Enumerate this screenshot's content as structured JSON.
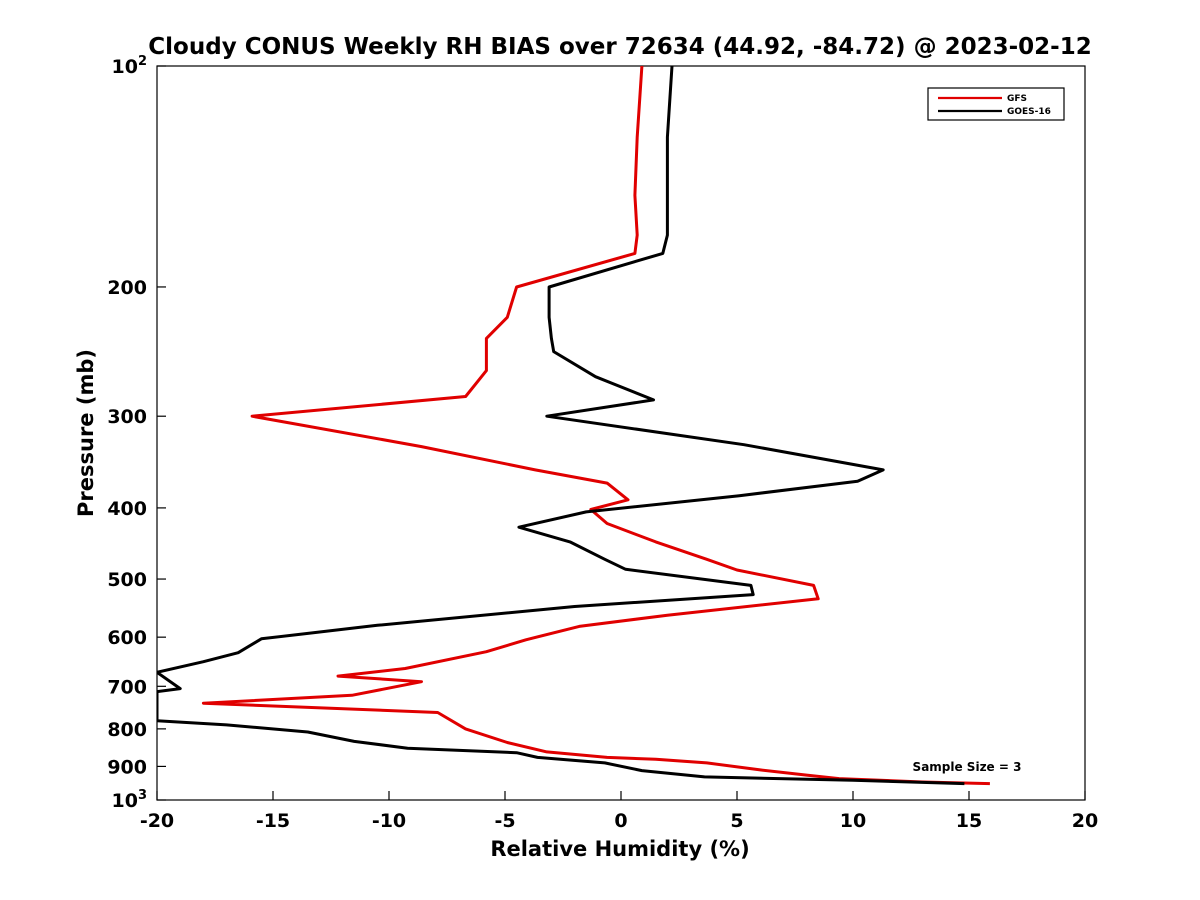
{
  "chart_data": {
    "type": "line",
    "title": "Cloudy CONUS Weekly RH BIAS over 72634 (44.92, -84.72) @ 2023-02-12",
    "xlabel": "Relative Humidity (%)",
    "ylabel": "Pressure (mb)",
    "xlim": [
      -20,
      20
    ],
    "ylim": [
      1000,
      100
    ],
    "y_scale": "log",
    "x_ticks": [
      "-20",
      "-15",
      "-10",
      "-5",
      "0",
      "5",
      "10",
      "15",
      "20"
    ],
    "y_ticks": [
      {
        "value": 100,
        "base": "10",
        "exp": "2"
      },
      {
        "value": 200,
        "base": "200",
        "exp": ""
      },
      {
        "value": 300,
        "base": "300",
        "exp": ""
      },
      {
        "value": 400,
        "base": "400",
        "exp": ""
      },
      {
        "value": 500,
        "base": "500",
        "exp": ""
      },
      {
        "value": 600,
        "base": "600",
        "exp": ""
      },
      {
        "value": 700,
        "base": "700",
        "exp": ""
      },
      {
        "value": 800,
        "base": "800",
        "exp": ""
      },
      {
        "value": 900,
        "base": "900",
        "exp": ""
      },
      {
        "value": 1000,
        "base": "10",
        "exp": "3"
      }
    ],
    "grid": false,
    "legend_position": "top-right",
    "annotation": "Sample Size = 3",
    "series": [
      {
        "name": "GFS",
        "color": "#e00000",
        "points": [
          [
            0.9,
            100
          ],
          [
            0.7,
            125
          ],
          [
            0.6,
            150
          ],
          [
            0.7,
            170
          ],
          [
            0.6,
            180
          ],
          [
            -4.5,
            200
          ],
          [
            -4.9,
            220
          ],
          [
            -5.8,
            235
          ],
          [
            -5.8,
            260
          ],
          [
            -6.7,
            282
          ],
          [
            -15.9,
            300
          ],
          [
            -8.6,
            330
          ],
          [
            -3.7,
            355
          ],
          [
            -0.6,
            370
          ],
          [
            0.3,
            390
          ],
          [
            -1.3,
            402
          ],
          [
            -0.6,
            420
          ],
          [
            1.5,
            445
          ],
          [
            3.7,
            470
          ],
          [
            5.0,
            486
          ],
          [
            8.3,
            510
          ],
          [
            8.5,
            532
          ],
          [
            2.0,
            560
          ],
          [
            -1.8,
            580
          ],
          [
            -4.1,
            605
          ],
          [
            -5.8,
            628
          ],
          [
            -9.3,
            662
          ],
          [
            -12.2,
            678
          ],
          [
            -8.6,
            690
          ],
          [
            -11.6,
            720
          ],
          [
            -18.0,
            738
          ],
          [
            -7.9,
            760
          ],
          [
            -6.7,
            800
          ],
          [
            -4.9,
            835
          ],
          [
            -3.2,
            860
          ],
          [
            -0.6,
            875
          ],
          [
            1.5,
            880
          ],
          [
            3.7,
            890
          ],
          [
            6.0,
            910
          ],
          [
            8.0,
            925
          ],
          [
            9.4,
            935
          ],
          [
            13.0,
            945
          ],
          [
            15.9,
            950
          ]
        ]
      },
      {
        "name": "GOES-16",
        "color": "#000000",
        "points": [
          [
            2.2,
            100
          ],
          [
            2.0,
            125
          ],
          [
            2.0,
            150
          ],
          [
            2.0,
            170
          ],
          [
            1.8,
            180
          ],
          [
            -3.1,
            200
          ],
          [
            -3.1,
            220
          ],
          [
            -3.0,
            235
          ],
          [
            -2.9,
            245
          ],
          [
            -1.1,
            265
          ],
          [
            1.4,
            285
          ],
          [
            -3.2,
            300
          ],
          [
            5.3,
            328
          ],
          [
            11.3,
            355
          ],
          [
            10.2,
            368
          ],
          [
            5.1,
            385
          ],
          [
            -1.5,
            405
          ],
          [
            -4.4,
            425
          ],
          [
            -2.2,
            445
          ],
          [
            -0.7,
            470
          ],
          [
            0.2,
            485
          ],
          [
            5.6,
            510
          ],
          [
            5.7,
            525
          ],
          [
            -2.0,
            545
          ],
          [
            -10.5,
            578
          ],
          [
            -15.5,
            603
          ],
          [
            -16.5,
            630
          ],
          [
            -18.0,
            648
          ],
          [
            -20.0,
            670
          ],
          [
            -19.0,
            705
          ],
          [
            -20.0,
            712
          ],
          [
            -20.0,
            780
          ],
          [
            -17.0,
            790
          ],
          [
            -13.5,
            808
          ],
          [
            -11.5,
            832
          ],
          [
            -9.2,
            850
          ],
          [
            -4.5,
            862
          ],
          [
            -3.6,
            875
          ],
          [
            -0.7,
            890
          ],
          [
            0.9,
            912
          ],
          [
            3.6,
            930
          ],
          [
            10.0,
            940
          ],
          [
            14.8,
            950
          ]
        ]
      }
    ]
  }
}
